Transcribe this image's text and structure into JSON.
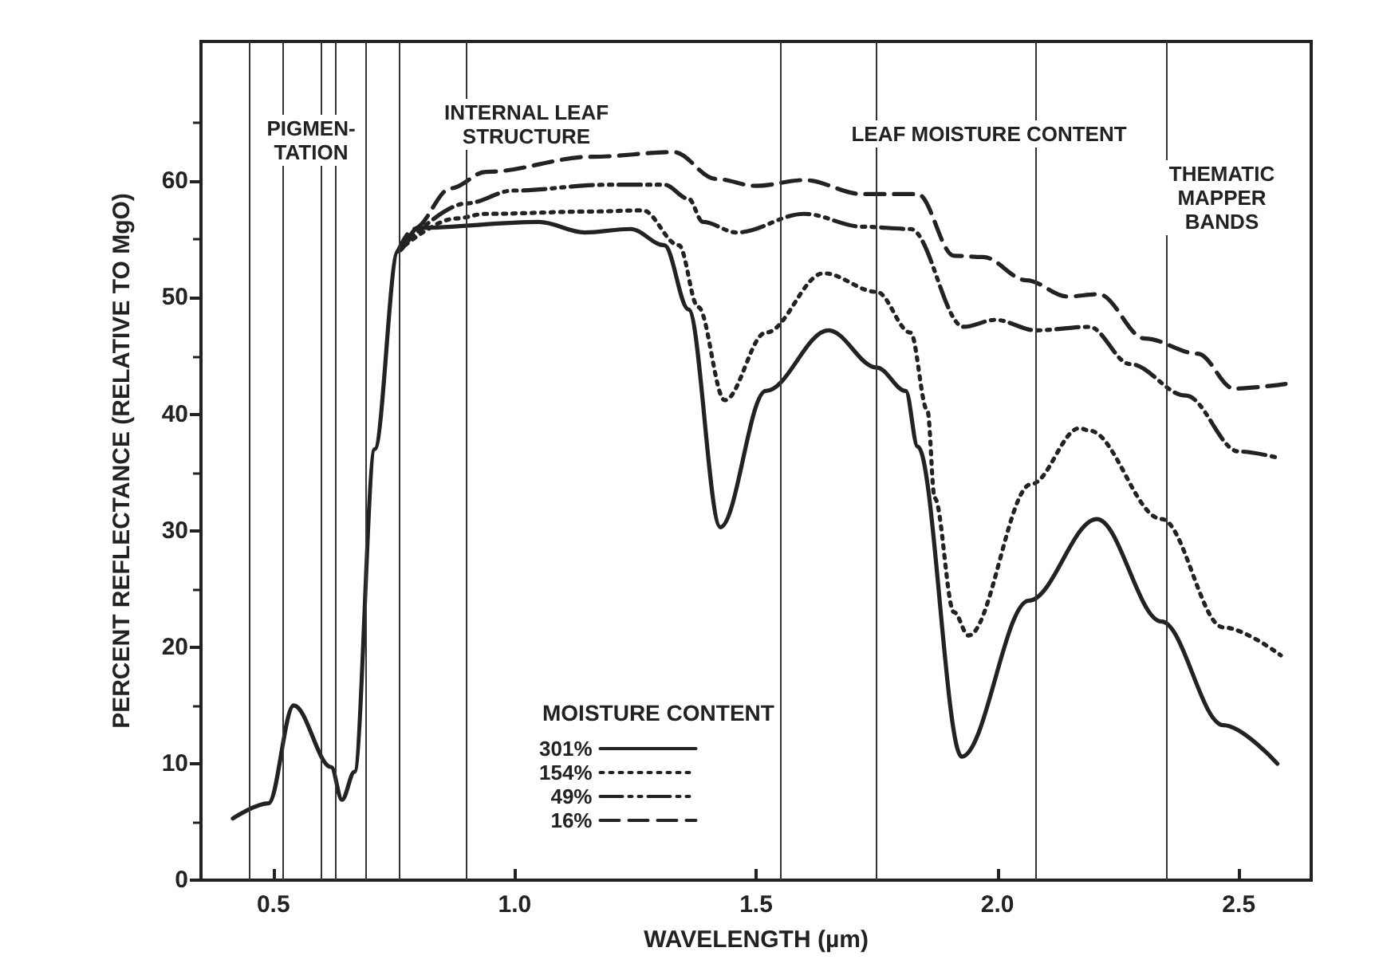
{
  "chart_data": {
    "type": "line",
    "xlabel": "WAVELENGTH (µm)",
    "ylabel": "PERCENT REFLECTANCE (RELATIVE TO MgO)",
    "legend_title": "MOISTURE CONTENT",
    "xlim": [
      0.35,
      2.65
    ],
    "ylim": [
      0,
      72
    ],
    "xticks": [
      {
        "value": 0.5,
        "label": "0.5"
      },
      {
        "value": 1.0,
        "label": "1.0"
      },
      {
        "value": 1.5,
        "label": "1.5"
      },
      {
        "value": 2.0,
        "label": "2.0"
      },
      {
        "value": 2.5,
        "label": "2.5"
      }
    ],
    "yticks": [
      0,
      10,
      20,
      30,
      40,
      50,
      60
    ],
    "grid": false,
    "legend": "bottom",
    "marker": "none",
    "series": [
      {
        "name": "301%",
        "color": "#222222",
        "line_style": "solid",
        "x": [
          0.416,
          0.49,
          0.542,
          0.62,
          0.642,
          0.668,
          0.71,
          0.758,
          0.8,
          1.05,
          1.145,
          1.24,
          1.31,
          1.36,
          1.426,
          1.52,
          1.65,
          1.75,
          1.81,
          1.835,
          1.926,
          2.065,
          2.206,
          2.34,
          2.468,
          2.58
        ],
        "values": [
          5.3,
          6.6,
          15,
          9.7,
          6.9,
          9.3,
          37,
          54,
          56,
          56.5,
          55.6,
          55.9,
          54.5,
          49,
          30.3,
          42,
          47.2,
          44,
          42,
          37.2,
          10.6,
          24,
          31,
          22.2,
          13.3,
          10
        ]
      },
      {
        "name": "154%",
        "color": "#222222",
        "line_style": "dotted",
        "x": [
          0.758,
          0.877,
          0.94,
          1.16,
          1.265,
          1.34,
          1.38,
          1.435,
          1.52,
          1.64,
          1.75,
          1.82,
          1.855,
          1.87,
          1.91,
          1.94,
          2.07,
          2.17,
          2.19,
          2.34,
          2.468,
          2.587
        ],
        "values": [
          54,
          56.8,
          57.2,
          57.4,
          57.5,
          54.5,
          49.2,
          41.2,
          47,
          52.1,
          50.5,
          47,
          40.3,
          32.8,
          23,
          21,
          34,
          38.8,
          38.6,
          31,
          21.7,
          19.3
        ]
      },
      {
        "name": "49%",
        "color": "#222222",
        "line_style": "dashdot",
        "x": [
          0.758,
          0.9,
          0.997,
          1.19,
          1.31,
          1.36,
          1.39,
          1.46,
          1.6,
          1.72,
          1.82,
          1.93,
          1.995,
          2.08,
          2.19,
          2.275,
          2.39,
          2.5,
          2.587
        ],
        "values": [
          54,
          58.1,
          59.2,
          59.7,
          59.7,
          58.5,
          56.5,
          55.6,
          57.2,
          56.1,
          55.9,
          47.5,
          48.1,
          47.2,
          47.5,
          44.3,
          41.6,
          36.8,
          36.2
        ]
      },
      {
        "name": "16%",
        "color": "#222222",
        "line_style": "dashed",
        "x": [
          0.758,
          0.79,
          0.868,
          0.94,
          1.16,
          1.33,
          1.416,
          1.5,
          1.6,
          1.72,
          1.835,
          1.91,
          1.97,
          2.06,
          2.145,
          2.21,
          2.305,
          2.415,
          2.49,
          2.597
        ],
        "values": [
          54,
          55.9,
          59.4,
          60.8,
          62.1,
          62.5,
          60.2,
          59.6,
          60.1,
          58.9,
          58.9,
          53.6,
          53.5,
          51.5,
          50.1,
          50.3,
          46.5,
          45.2,
          42.2,
          42.6
        ]
      }
    ],
    "ref_lines": [
      {
        "axis": "x",
        "value": 0.45
      },
      {
        "axis": "x",
        "value": 0.52
      },
      {
        "axis": "x",
        "value": 0.6
      },
      {
        "axis": "x",
        "value": 0.63
      },
      {
        "axis": "x",
        "value": 0.69
      },
      {
        "axis": "x",
        "value": 0.76
      },
      {
        "axis": "x",
        "value": 0.9
      },
      {
        "axis": "x",
        "value": 1.55
      },
      {
        "axis": "x",
        "value": 1.75
      },
      {
        "axis": "x",
        "value": 2.08
      },
      {
        "axis": "x",
        "value": 2.35
      }
    ],
    "annotations": [
      "PIGMEN-\nTATION",
      "INTERNAL LEAF\nSTRUCTURE",
      "LEAF MOISTURE CONTENT",
      "THEMATIC\nMAPPER\nBANDS"
    ]
  }
}
